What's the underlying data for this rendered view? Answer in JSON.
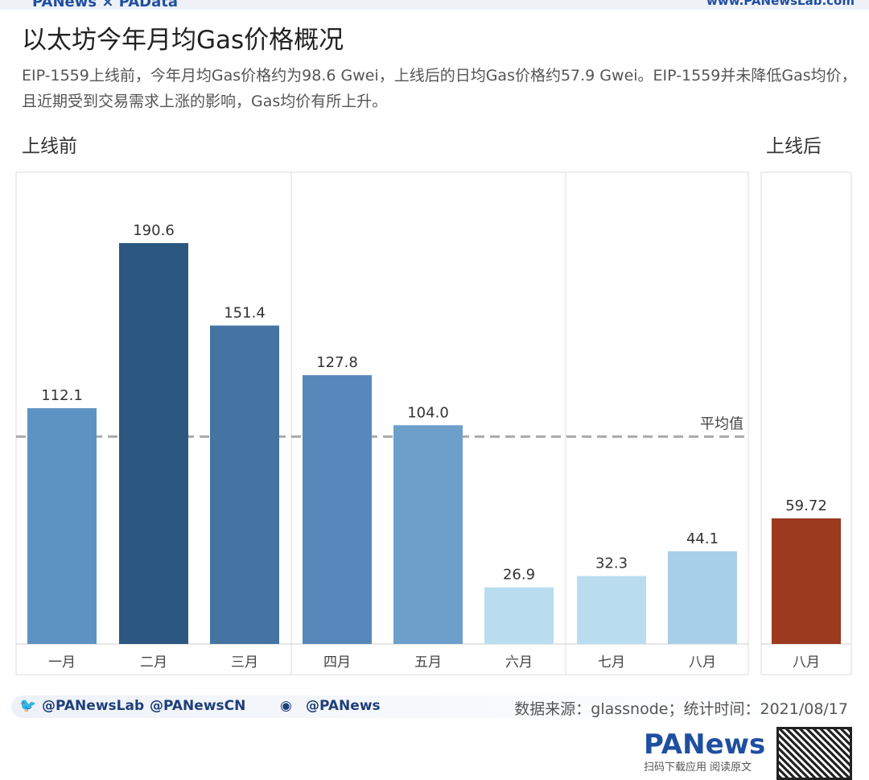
{
  "header": {
    "brand": "PANews × PAData",
    "site": "www.PANewsLab.com"
  },
  "title": "以太坊今年月均Gas价格概况",
  "subtitle": "EIP-1559上线前，今年月均Gas价格约为98.6 Gwei，上线后的日均Gas价格约57.9 Gwei。EIP-1559并未降低Gas均价，且近期受到交易需求上涨的影响，Gas均价有所上升。",
  "chart_data": {
    "type": "bar",
    "title": "以太坊今年月均Gas价格概况",
    "panels": [
      {
        "label": "上线前",
        "categories": [
          "一月",
          "二月",
          "三月",
          "四月",
          "五月",
          "六月",
          "七月",
          "八月"
        ],
        "values": [
          112.1,
          190.6,
          151.4,
          127.8,
          104.0,
          26.9,
          32.3,
          44.1
        ],
        "value_labels": [
          "112.1",
          "190.6",
          "151.4",
          "127.8",
          "104.0",
          "26.9",
          "32.3",
          "44.1"
        ],
        "colors": [
          "#5c93c3",
          "#2b5780",
          "#4574a3",
          "#5688bb",
          "#6c9fc9",
          "#b9dcef",
          "#b9dcef",
          "#a8cfe8"
        ]
      },
      {
        "label": "上线后",
        "categories": [
          "八月"
        ],
        "values": [
          59.72
        ],
        "value_labels": [
          "59.72"
        ],
        "colors": [
          "#9b3a1f"
        ]
      }
    ],
    "reference_line": {
      "label": "平均值",
      "value": 98.6
    },
    "ylim": [
      0,
      200
    ],
    "unit": "Gwei"
  },
  "footer": {
    "twitter1": "@PANewsLab",
    "twitter2": "@PANewsCN",
    "weibo": "@PANews",
    "source": "数据来源：glassnode；统计时间：2021/08/17",
    "logo": "PANews",
    "scan": "扫码下载应用 阅读原文"
  }
}
